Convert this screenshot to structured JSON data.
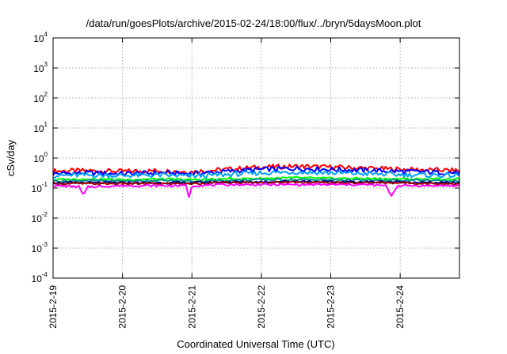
{
  "chart_data": {
    "type": "line",
    "title": "/data/run/goesPlots/archive/2015-02-24/18:00/flux/../bryn/5daysMoon.plot",
    "xlabel": "Coordinated Universal Time (UTC)",
    "ylabel": "cSv/day",
    "yscale": "log",
    "ylim": [
      0.0001,
      10000
    ],
    "xlim": [
      "2015-02-19",
      "2015-02-24T20:30"
    ],
    "grid": true,
    "legend": "none",
    "x_ticks": [
      "2015-2-19",
      "2015-2-20",
      "2015-2-21",
      "2015-2-22",
      "2015-2-23",
      "2015-2-24"
    ],
    "y_ticks": [
      {
        "base": "10",
        "exp": "4",
        "value": 10000
      },
      {
        "base": "10",
        "exp": "3",
        "value": 1000
      },
      {
        "base": "10",
        "exp": "2",
        "value": 100
      },
      {
        "base": "10",
        "exp": "1",
        "value": 10
      },
      {
        "base": "10",
        "exp": "0",
        "value": 1
      },
      {
        "base": "10",
        "exp": "-1",
        "value": 0.1
      },
      {
        "base": "10",
        "exp": "-2",
        "value": 0.01
      },
      {
        "base": "10",
        "exp": "-3",
        "value": 0.001
      },
      {
        "base": "10",
        "exp": "-4",
        "value": 0.0001
      }
    ],
    "series": [
      {
        "color": "#ff0000",
        "values": [
          [
            "2015-02-19T00:00",
            0.37
          ],
          [
            "2015-02-19T12:00",
            0.38
          ],
          [
            "2015-02-20T00:00",
            0.36
          ],
          [
            "2015-02-20T12:00",
            0.38
          ],
          [
            "2015-02-21T00:00",
            0.35
          ],
          [
            "2015-02-21T12:00",
            0.42
          ],
          [
            "2015-02-22T00:00",
            0.5
          ],
          [
            "2015-02-22T12:00",
            0.53
          ],
          [
            "2015-02-23T00:00",
            0.5
          ],
          [
            "2015-02-23T12:00",
            0.46
          ],
          [
            "2015-02-24T00:00",
            0.42
          ],
          [
            "2015-02-24T12:00",
            0.4
          ],
          [
            "2015-02-24T20:30",
            0.38
          ]
        ]
      },
      {
        "color": "#0000ff",
        "values": [
          [
            "2015-02-19T00:00",
            0.3
          ],
          [
            "2015-02-19T12:00",
            0.32
          ],
          [
            "2015-02-20T00:00",
            0.3
          ],
          [
            "2015-02-20T12:00",
            0.32
          ],
          [
            "2015-02-21T00:00",
            0.3
          ],
          [
            "2015-02-21T12:00",
            0.36
          ],
          [
            "2015-02-22T00:00",
            0.42
          ],
          [
            "2015-02-22T12:00",
            0.45
          ],
          [
            "2015-02-23T00:00",
            0.42
          ],
          [
            "2015-02-23T12:00",
            0.39
          ],
          [
            "2015-02-24T00:00",
            0.36
          ],
          [
            "2015-02-24T12:00",
            0.34
          ],
          [
            "2015-02-24T20:30",
            0.32
          ]
        ]
      },
      {
        "color": "#00a0ff",
        "values": [
          [
            "2015-02-19T00:00",
            0.26
          ],
          [
            "2015-02-19T12:00",
            0.27
          ],
          [
            "2015-02-20T00:00",
            0.26
          ],
          [
            "2015-02-20T12:00",
            0.27
          ],
          [
            "2015-02-21T00:00",
            0.25
          ],
          [
            "2015-02-21T12:00",
            0.28
          ],
          [
            "2015-02-22T00:00",
            0.32
          ],
          [
            "2015-02-22T12:00",
            0.34
          ],
          [
            "2015-02-23T00:00",
            0.32
          ],
          [
            "2015-02-23T12:00",
            0.3
          ],
          [
            "2015-02-24T00:00",
            0.28
          ],
          [
            "2015-02-24T12:00",
            0.27
          ],
          [
            "2015-02-24T20:30",
            0.26
          ]
        ]
      },
      {
        "color": "#00ff00",
        "values": [
          [
            "2015-02-19T00:00",
            0.19
          ],
          [
            "2015-02-19T12:00",
            0.2
          ],
          [
            "2015-02-20T00:00",
            0.19
          ],
          [
            "2015-02-20T12:00",
            0.2
          ],
          [
            "2015-02-21T00:00",
            0.19
          ],
          [
            "2015-02-21T12:00",
            0.2
          ],
          [
            "2015-02-22T00:00",
            0.21
          ],
          [
            "2015-02-22T12:00",
            0.22
          ],
          [
            "2015-02-23T00:00",
            0.21
          ],
          [
            "2015-02-23T12:00",
            0.21
          ],
          [
            "2015-02-24T00:00",
            0.2
          ],
          [
            "2015-02-24T12:00",
            0.2
          ],
          [
            "2015-02-24T20:30",
            0.2
          ]
        ]
      },
      {
        "color": "#009090",
        "values": [
          [
            "2015-02-19T00:00",
            0.17
          ],
          [
            "2015-02-19T12:00",
            0.18
          ],
          [
            "2015-02-20T00:00",
            0.17
          ],
          [
            "2015-02-20T12:00",
            0.18
          ],
          [
            "2015-02-21T00:00",
            0.17
          ],
          [
            "2015-02-21T12:00",
            0.18
          ],
          [
            "2015-02-22T00:00",
            0.19
          ],
          [
            "2015-02-22T12:00",
            0.19
          ],
          [
            "2015-02-23T00:00",
            0.19
          ],
          [
            "2015-02-23T12:00",
            0.18
          ],
          [
            "2015-02-24T00:00",
            0.18
          ],
          [
            "2015-02-24T12:00",
            0.18
          ],
          [
            "2015-02-24T20:30",
            0.17
          ]
        ]
      },
      {
        "color": "#000080",
        "values": [
          [
            "2015-02-19T00:00",
            0.15
          ],
          [
            "2015-02-19T12:00",
            0.15
          ],
          [
            "2015-02-20T00:00",
            0.15
          ],
          [
            "2015-02-20T12:00",
            0.15
          ],
          [
            "2015-02-21T00:00",
            0.15
          ],
          [
            "2015-02-21T12:00",
            0.16
          ],
          [
            "2015-02-22T00:00",
            0.16
          ],
          [
            "2015-02-22T12:00",
            0.17
          ],
          [
            "2015-02-23T00:00",
            0.16
          ],
          [
            "2015-02-23T12:00",
            0.16
          ],
          [
            "2015-02-24T00:00",
            0.16
          ],
          [
            "2015-02-24T12:00",
            0.15
          ],
          [
            "2015-02-24T20:30",
            0.15
          ]
        ]
      },
      {
        "color": "#a00000",
        "values": [
          [
            "2015-02-19T00:00",
            0.14
          ],
          [
            "2015-02-19T12:00",
            0.14
          ],
          [
            "2015-02-20T00:00",
            0.14
          ],
          [
            "2015-02-20T12:00",
            0.14
          ],
          [
            "2015-02-21T00:00",
            0.14
          ],
          [
            "2015-02-21T12:00",
            0.15
          ],
          [
            "2015-02-22T00:00",
            0.15
          ],
          [
            "2015-02-22T12:00",
            0.16
          ],
          [
            "2015-02-23T00:00",
            0.15
          ],
          [
            "2015-02-23T12:00",
            0.15
          ],
          [
            "2015-02-24T00:00",
            0.15
          ],
          [
            "2015-02-24T12:00",
            0.14
          ],
          [
            "2015-02-24T20:30",
            0.14
          ]
        ]
      },
      {
        "color": "#ff00ff",
        "values": [
          [
            "2015-02-19T00:00",
            0.12
          ],
          [
            "2015-02-19T09:00",
            0.11
          ],
          [
            "2015-02-19T10:30",
            0.055
          ],
          [
            "2015-02-19T12:00",
            0.11
          ],
          [
            "2015-02-20T00:00",
            0.12
          ],
          [
            "2015-02-20T12:00",
            0.12
          ],
          [
            "2015-02-20T22:00",
            0.12
          ],
          [
            "2015-02-20T23:00",
            0.05
          ],
          [
            "2015-02-21T00:00",
            0.12
          ],
          [
            "2015-02-21T12:00",
            0.13
          ],
          [
            "2015-02-22T00:00",
            0.13
          ],
          [
            "2015-02-22T12:00",
            0.13
          ],
          [
            "2015-02-23T00:00",
            0.13
          ],
          [
            "2015-02-23T12:00",
            0.13
          ],
          [
            "2015-02-23T19:00",
            0.12
          ],
          [
            "2015-02-23T21:00",
            0.055
          ],
          [
            "2015-02-23T23:00",
            0.12
          ],
          [
            "2015-02-24T12:00",
            0.12
          ],
          [
            "2015-02-24T20:30",
            0.12
          ]
        ]
      }
    ]
  }
}
